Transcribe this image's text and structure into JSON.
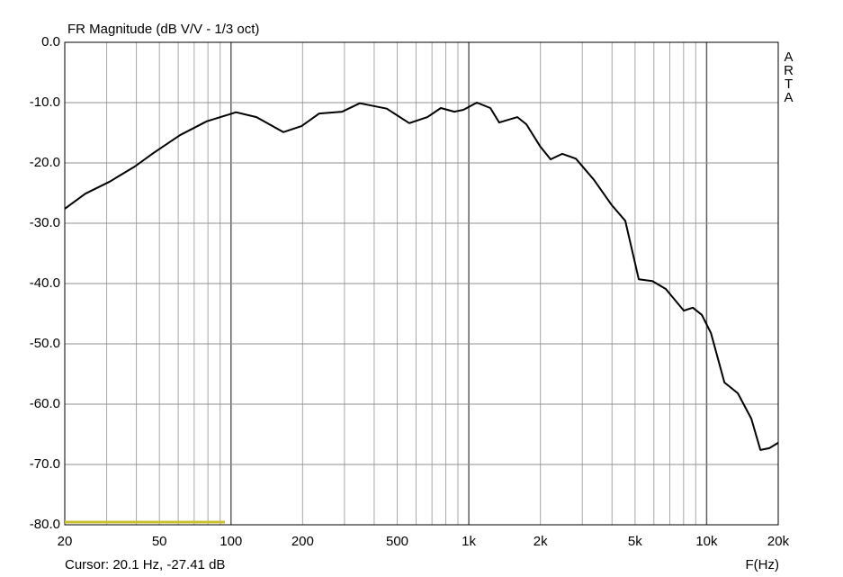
{
  "chart_data": {
    "type": "line",
    "title": "FR Magnitude (dB V/V - 1/3 oct)",
    "side_label": "ARTA",
    "cursor_text": "Cursor: 20.1 Hz, -27.41 dB",
    "x_label": "F(Hz)",
    "xscale": "log",
    "xlim": [
      20,
      20000
    ],
    "ylim": [
      -80,
      0
    ],
    "xticks": [
      20,
      50,
      100,
      200,
      500,
      {
        "value": 1000,
        "label": "1k"
      },
      {
        "value": 2000,
        "label": "2k"
      },
      {
        "value": 5000,
        "label": "5k"
      },
      {
        "value": 10000,
        "label": "10k"
      },
      {
        "value": 20000,
        "label": "20k"
      }
    ],
    "x_minor_grid": [
      30,
      40,
      60,
      70,
      80,
      90,
      300,
      400,
      600,
      700,
      800,
      900,
      3000,
      4000,
      6000,
      7000,
      8000,
      9000
    ],
    "yticks": [
      {
        "value": 0,
        "label": "0.0"
      },
      {
        "value": -10,
        "label": "-10.0"
      },
      {
        "value": -20,
        "label": "-20.0"
      },
      {
        "value": -30,
        "label": "-30.0"
      },
      {
        "value": -40,
        "label": "-40.0"
      },
      {
        "value": -50,
        "label": "-50.0"
      },
      {
        "value": -60,
        "label": "-60.0"
      },
      {
        "value": -70,
        "label": "-70.0"
      },
      {
        "value": -80,
        "label": "-80.0"
      }
    ],
    "grid": true,
    "x": [
      20,
      24.4,
      30.9,
      39.4,
      47,
      61,
      79,
      105,
      128,
      166,
      198,
      235,
      293,
      348,
      452,
      562,
      670,
      763,
      869,
      949,
      1081,
      1231,
      1343,
      1600,
      1746,
      1991,
      2208,
      2473,
      2819,
      3358,
      3990,
      4550,
      5185,
      5912,
      6730,
      8017,
      8750,
      9550,
      10420,
      11880,
      13530,
      15420,
      16830,
      18350,
      20000
    ],
    "series": [
      {
        "color": "#000000",
        "values": [
          -27.6,
          -25.1,
          -23.1,
          -20.6,
          -18.4,
          -15.4,
          -13.1,
          -11.6,
          -12.4,
          -14.9,
          -13.9,
          -11.8,
          -11.5,
          -10.1,
          -11.0,
          -13.4,
          -12.4,
          -10.9,
          -11.5,
          -11.2,
          -10.0,
          -10.9,
          -13.3,
          -12.4,
          -13.6,
          -17.2,
          -19.4,
          -18.5,
          -19.3,
          -22.8,
          -27.0,
          -29.6,
          -39.3,
          -39.6,
          -40.9,
          -44.5,
          -44.0,
          -45.2,
          -48.2,
          -56.4,
          -58.2,
          -62.4,
          -67.6,
          -67.3,
          -66.4
        ]
      }
    ]
  }
}
